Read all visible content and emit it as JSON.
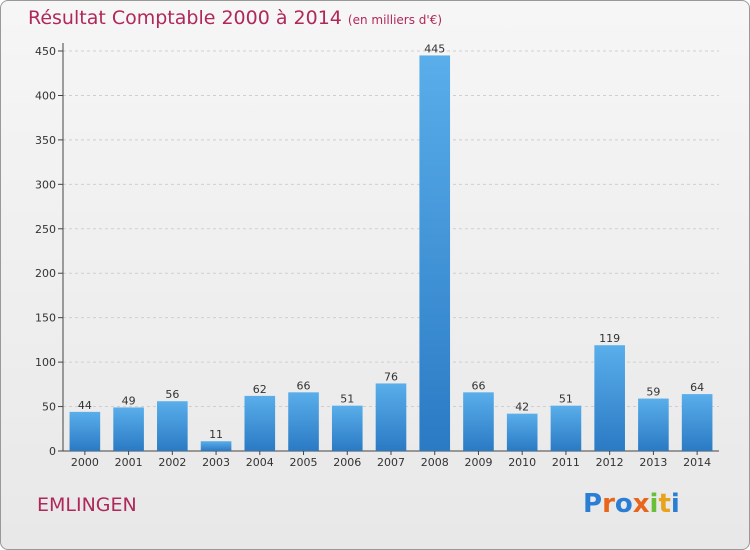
{
  "chart_data": {
    "type": "bar",
    "title": "Résultat Comptable 2000 à 2014",
    "subtitle": "(en milliers d'€)",
    "categories": [
      "2000",
      "2001",
      "2002",
      "2003",
      "2004",
      "2005",
      "2006",
      "2007",
      "2008",
      "2009",
      "2010",
      "2011",
      "2012",
      "2013",
      "2014"
    ],
    "values": [
      44,
      49,
      56,
      11,
      62,
      66,
      51,
      76,
      445,
      66,
      42,
      51,
      119,
      59,
      64
    ],
    "ylim": [
      0,
      450
    ],
    "yticks": [
      0,
      50,
      100,
      150,
      200,
      250,
      300,
      350,
      400,
      450
    ],
    "grid": true,
    "bar_color": "#3d8fd9"
  },
  "footer": {
    "place": "EMLINGEN",
    "logo": [
      "P",
      "r",
      "o",
      "x",
      "i",
      "t",
      "i"
    ],
    "logo_colors": [
      "#2a7fd4",
      "#e8651b",
      "#2a7fd4",
      "#e8651b",
      "#6abf3a",
      "#e8a21b",
      "#2a7fd4"
    ]
  }
}
